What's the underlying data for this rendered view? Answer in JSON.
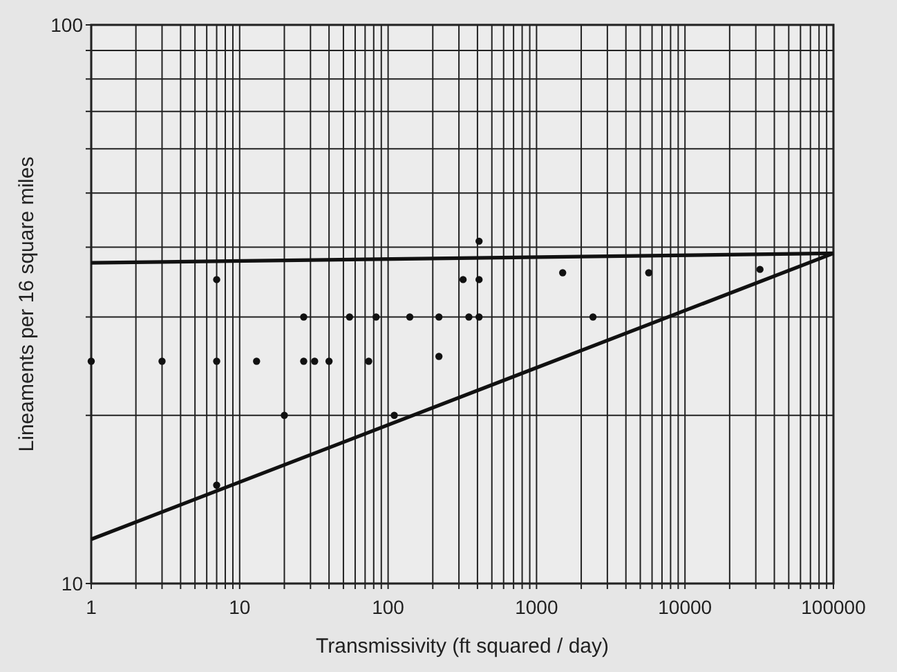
{
  "chart_data": {
    "type": "scatter",
    "xlabel": "Transmissivity (ft squared / day)",
    "ylabel": "Lineaments per 16 square miles",
    "log": "xy",
    "grid": true,
    "xlim": [
      1,
      100000
    ],
    "ylim": [
      10,
      100
    ],
    "xticks": [
      1,
      {
        "value": 2,
        "label": null
      },
      {
        "value": 3,
        "label": null
      },
      {
        "value": 4,
        "label": null
      },
      {
        "value": 5,
        "label": null
      },
      {
        "value": 6,
        "label": null
      },
      {
        "value": 7,
        "label": null
      },
      {
        "value": 8,
        "label": null
      },
      {
        "value": 9,
        "label": null
      },
      10,
      {
        "value": 20,
        "label": null
      },
      {
        "value": 30,
        "label": null
      },
      {
        "value": 40,
        "label": null
      },
      {
        "value": 50,
        "label": null
      },
      {
        "value": 60,
        "label": null
      },
      {
        "value": 70,
        "label": null
      },
      {
        "value": 80,
        "label": null
      },
      {
        "value": 90,
        "label": null
      },
      100,
      {
        "value": 200,
        "label": null
      },
      {
        "value": 300,
        "label": null
      },
      {
        "value": 400,
        "label": null
      },
      {
        "value": 500,
        "label": null
      },
      {
        "value": 600,
        "label": null
      },
      {
        "value": 700,
        "label": null
      },
      {
        "value": 800,
        "label": null
      },
      {
        "value": 900,
        "label": null
      },
      1000,
      {
        "value": 2000,
        "label": null
      },
      {
        "value": 3000,
        "label": null
      },
      {
        "value": 4000,
        "label": null
      },
      {
        "value": 5000,
        "label": null
      },
      {
        "value": 6000,
        "label": null
      },
      {
        "value": 7000,
        "label": null
      },
      {
        "value": 8000,
        "label": null
      },
      {
        "value": 9000,
        "label": null
      },
      10000,
      {
        "value": 20000,
        "label": null
      },
      {
        "value": 30000,
        "label": null
      },
      {
        "value": 40000,
        "label": null
      },
      {
        "value": 50000,
        "label": null
      },
      {
        "value": 60000,
        "label": null
      },
      {
        "value": 70000,
        "label": null
      },
      {
        "value": 80000,
        "label": null
      },
      {
        "value": 90000,
        "label": null
      },
      100000
    ],
    "yticks": [
      10,
      {
        "value": 20,
        "label": null
      },
      {
        "value": 30,
        "label": null
      },
      {
        "value": 40,
        "label": null
      },
      {
        "value": 50,
        "label": null
      },
      {
        "value": 60,
        "label": null
      },
      {
        "value": 70,
        "label": null
      },
      {
        "value": 80,
        "label": null
      },
      {
        "value": 90,
        "label": null
      },
      100
    ],
    "series": [
      {
        "marker": "circle",
        "color": "#111111",
        "x": [
          1,
          3,
          7,
          7,
          7,
          13,
          20,
          27,
          27,
          32,
          40,
          55,
          74,
          83,
          110,
          140,
          220,
          220,
          320,
          350,
          410,
          410,
          410,
          1500,
          2400,
          5700,
          32000
        ],
        "values": [
          25,
          25,
          35,
          25,
          15,
          25,
          20,
          30,
          25,
          25,
          25,
          30,
          25,
          30,
          20,
          30,
          30,
          25.5,
          35,
          30,
          41,
          35,
          30,
          36,
          30,
          36,
          36.5
        ]
      },
      {
        "type": "line",
        "color": "#111111",
        "x": [
          1,
          100000
        ],
        "values": [
          37.5,
          39
        ]
      },
      {
        "type": "line",
        "color": "#111111",
        "x": [
          1,
          100000
        ],
        "values": [
          12,
          39
        ]
      }
    ]
  }
}
